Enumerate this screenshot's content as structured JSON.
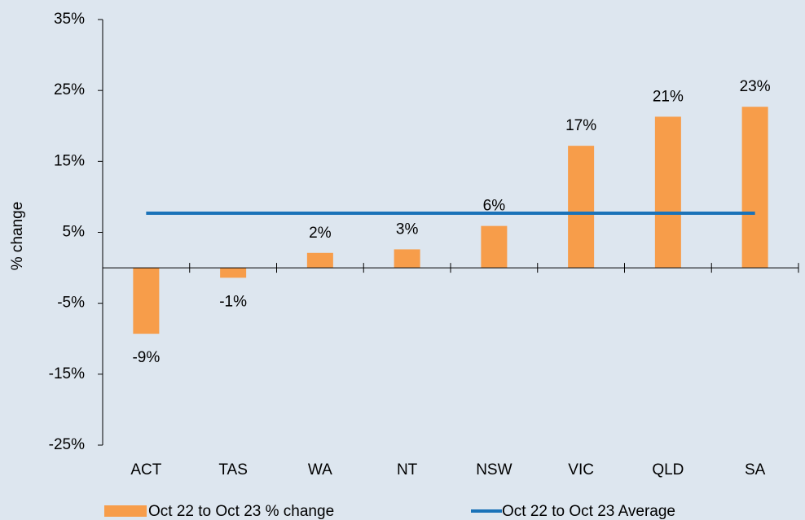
{
  "chart_data": {
    "type": "bar",
    "ylabel": "% change",
    "categories": [
      "ACT",
      "TAS",
      "WA",
      "NT",
      "NSW",
      "VIC",
      "QLD",
      "SA"
    ],
    "series": [
      {
        "name": "Oct 22 to Oct 23 % change",
        "type": "bar",
        "color": "#f79d4a",
        "values": [
          -9.3,
          -1.4,
          2.1,
          2.6,
          5.9,
          17.2,
          21.3,
          22.7
        ],
        "value_labels": [
          "-9%",
          "-1%",
          "2%",
          "3%",
          "6%",
          "17%",
          "21%",
          "23%"
        ]
      },
      {
        "name": "Oct 22 to Oct 23 Average",
        "type": "line",
        "color": "#1a72b8",
        "values": [
          7.7,
          7.7,
          7.7,
          7.7,
          7.7,
          7.7,
          7.7,
          7.7
        ]
      }
    ],
    "ylim": [
      -25,
      35
    ],
    "yticks": [
      {
        "value": -25,
        "label": "-25%"
      },
      {
        "value": -15,
        "label": "-15%"
      },
      {
        "value": -5,
        "label": "-5%"
      },
      {
        "value": 5,
        "label": "5%"
      },
      {
        "value": 15,
        "label": "15%"
      },
      {
        "value": 25,
        "label": "25%"
      },
      {
        "value": 35,
        "label": "35%"
      }
    ],
    "legend": "bottom"
  }
}
